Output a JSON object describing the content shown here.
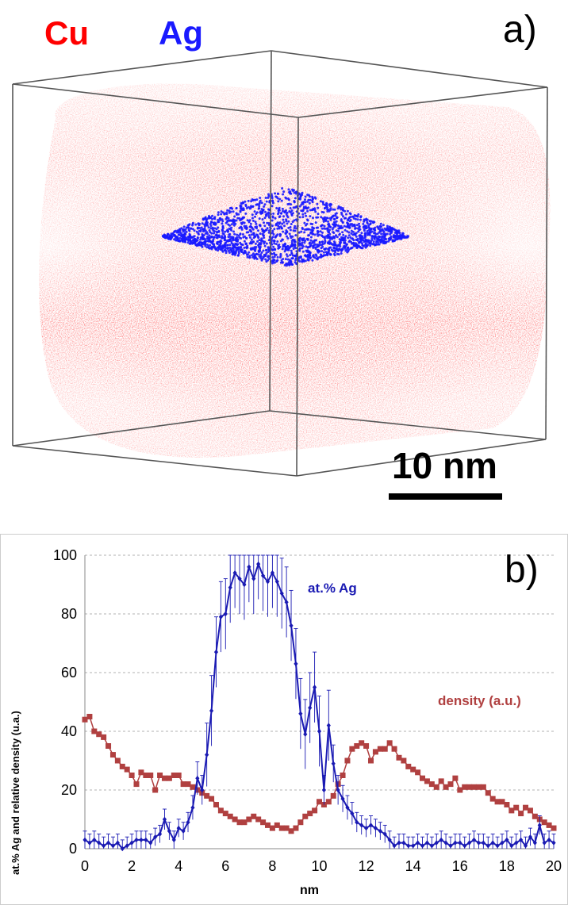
{
  "panel_a": {
    "label": "a)",
    "legend_cu": "Cu",
    "legend_ag": "Ag",
    "scale_bar_label": "10 nm",
    "colors": {
      "cu": "#ff3333",
      "ag": "#1a1aff"
    }
  },
  "chart_data": {
    "type": "line",
    "label": "b)",
    "xlabel": "nm",
    "ylabel": "at.% Ag and relative density (u.a.)",
    "xlim": [
      0,
      20
    ],
    "ylim": [
      0,
      100
    ],
    "xticks": [
      0,
      2,
      4,
      6,
      8,
      10,
      12,
      14,
      16,
      18,
      20
    ],
    "yticks": [
      0,
      20,
      40,
      60,
      80,
      100
    ],
    "grid": "horizontal dashed",
    "series": [
      {
        "name": "at.% Ag",
        "color": "#1a1ab3",
        "marker": "diamond",
        "error_bars": true,
        "x": [
          0.0,
          0.2,
          0.4,
          0.6,
          0.8,
          1.0,
          1.2,
          1.4,
          1.6,
          1.8,
          2.0,
          2.2,
          2.4,
          2.6,
          2.8,
          3.0,
          3.2,
          3.4,
          3.6,
          3.8,
          4.0,
          4.2,
          4.4,
          4.6,
          4.8,
          5.0,
          5.2,
          5.4,
          5.6,
          5.8,
          6.0,
          6.2,
          6.4,
          6.6,
          6.8,
          7.0,
          7.2,
          7.4,
          7.6,
          7.8,
          8.0,
          8.2,
          8.4,
          8.6,
          8.8,
          9.0,
          9.2,
          9.4,
          9.6,
          9.8,
          10.0,
          10.2,
          10.4,
          10.6,
          10.8,
          11.0,
          11.2,
          11.4,
          11.6,
          11.8,
          12.0,
          12.2,
          12.4,
          12.6,
          12.8,
          13.0,
          13.2,
          13.4,
          13.6,
          13.8,
          14.0,
          14.2,
          14.4,
          14.6,
          14.8,
          15.0,
          15.2,
          15.4,
          15.6,
          15.8,
          16.0,
          16.2,
          16.4,
          16.6,
          16.8,
          17.0,
          17.2,
          17.4,
          17.6,
          17.8,
          18.0,
          18.2,
          18.4,
          18.6,
          18.8,
          19.0,
          19.2,
          19.4,
          19.6,
          19.8,
          20.0
        ],
        "values": [
          3,
          2,
          3,
          2,
          1,
          2,
          1,
          2,
          0,
          1,
          2,
          3,
          3,
          3,
          2,
          4,
          5,
          10,
          6,
          3,
          7,
          6,
          9,
          14,
          24,
          20,
          32,
          47,
          67,
          79,
          80,
          89,
          94,
          92,
          90,
          96,
          92,
          97,
          93,
          91,
          94,
          91,
          87,
          84,
          76,
          63,
          46,
          39,
          48,
          55,
          40,
          20,
          42,
          29,
          20,
          17,
          14,
          12,
          9,
          8,
          7,
          8,
          7,
          6,
          5,
          3,
          1,
          2,
          2,
          1,
          1,
          2,
          1,
          2,
          1,
          2,
          3,
          2,
          1,
          2,
          2,
          1,
          2,
          3,
          2,
          2,
          1,
          2,
          1,
          2,
          3,
          1,
          2,
          3,
          1,
          4,
          2,
          8,
          2,
          3,
          2
        ]
      },
      {
        "name": "density (a.u.)",
        "color": "#b04040",
        "marker": "square",
        "error_bars": false,
        "x": [
          0.0,
          0.2,
          0.4,
          0.6,
          0.8,
          1.0,
          1.2,
          1.4,
          1.6,
          1.8,
          2.0,
          2.2,
          2.4,
          2.6,
          2.8,
          3.0,
          3.2,
          3.4,
          3.6,
          3.8,
          4.0,
          4.2,
          4.4,
          4.6,
          4.8,
          5.0,
          5.2,
          5.4,
          5.6,
          5.8,
          6.0,
          6.2,
          6.4,
          6.6,
          6.8,
          7.0,
          7.2,
          7.4,
          7.6,
          7.8,
          8.0,
          8.2,
          8.4,
          8.6,
          8.8,
          9.0,
          9.2,
          9.4,
          9.6,
          9.8,
          10.0,
          10.2,
          10.4,
          10.6,
          10.8,
          11.0,
          11.2,
          11.4,
          11.6,
          11.8,
          12.0,
          12.2,
          12.4,
          12.6,
          12.8,
          13.0,
          13.2,
          13.4,
          13.6,
          13.8,
          14.0,
          14.2,
          14.4,
          14.6,
          14.8,
          15.0,
          15.2,
          15.4,
          15.6,
          15.8,
          16.0,
          16.2,
          16.4,
          16.6,
          16.8,
          17.0,
          17.2,
          17.4,
          17.6,
          17.8,
          18.0,
          18.2,
          18.4,
          18.6,
          18.8,
          19.0,
          19.2,
          19.4,
          19.6,
          19.8,
          20.0
        ],
        "values": [
          44,
          45,
          40,
          39,
          38,
          35,
          32,
          30,
          28,
          27,
          25,
          22,
          26,
          25,
          25,
          20,
          25,
          24,
          24,
          25,
          25,
          22,
          22,
          21,
          20,
          19,
          18,
          17,
          15,
          13,
          12,
          11,
          10,
          9,
          9,
          10,
          11,
          10,
          9,
          8,
          7,
          8,
          7,
          7,
          6,
          7,
          9,
          11,
          12,
          13,
          16,
          15,
          16,
          18,
          22,
          25,
          30,
          34,
          35,
          36,
          35,
          30,
          33,
          34,
          34,
          36,
          34,
          31,
          30,
          28,
          27,
          26,
          24,
          23,
          22,
          21,
          23,
          21,
          22,
          24,
          20,
          21,
          21,
          21,
          21,
          21,
          19,
          17,
          16,
          16,
          15,
          13,
          14,
          12,
          14,
          13,
          11,
          10,
          9,
          8,
          7
        ]
      }
    ],
    "annotations": [
      "at.% Ag",
      "density (a.u.)"
    ]
  }
}
